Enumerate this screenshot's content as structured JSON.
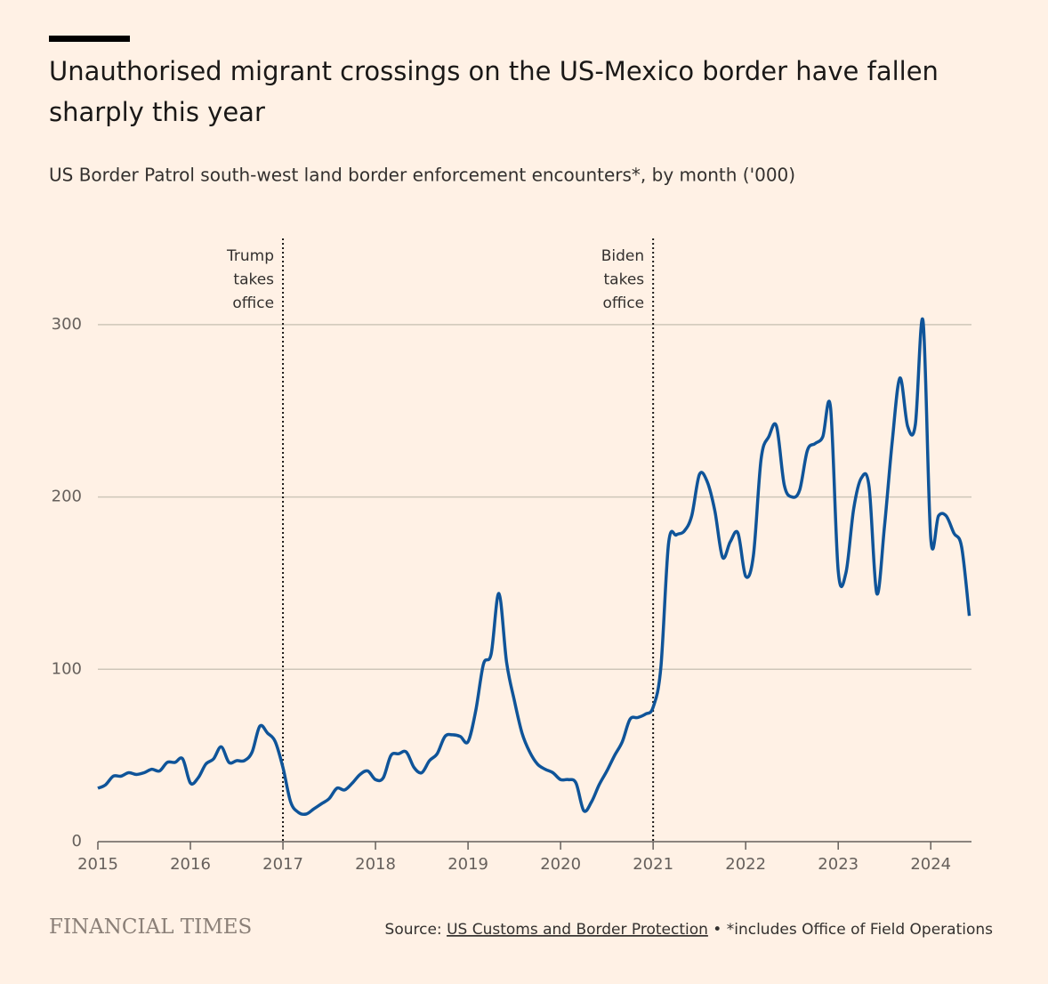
{
  "chart_data": {
    "type": "line",
    "title": "Unauthorised migrant crossings on the US-Mexico border have fallen sharply this year",
    "subtitle": "US Border Patrol south-west land border enforcement encounters*, by month ('000)",
    "x": [
      "2015-01",
      "2015-02",
      "2015-03",
      "2015-04",
      "2015-05",
      "2015-06",
      "2015-07",
      "2015-08",
      "2015-09",
      "2015-10",
      "2015-11",
      "2015-12",
      "2016-01",
      "2016-02",
      "2016-03",
      "2016-04",
      "2016-05",
      "2016-06",
      "2016-07",
      "2016-08",
      "2016-09",
      "2016-10",
      "2016-11",
      "2016-12",
      "2017-01",
      "2017-02",
      "2017-03",
      "2017-04",
      "2017-05",
      "2017-06",
      "2017-07",
      "2017-08",
      "2017-09",
      "2017-10",
      "2017-11",
      "2017-12",
      "2018-01",
      "2018-02",
      "2018-03",
      "2018-04",
      "2018-05",
      "2018-06",
      "2018-07",
      "2018-08",
      "2018-09",
      "2018-10",
      "2018-11",
      "2018-12",
      "2019-01",
      "2019-02",
      "2019-03",
      "2019-04",
      "2019-05",
      "2019-06",
      "2019-07",
      "2019-08",
      "2019-09",
      "2019-10",
      "2019-11",
      "2019-12",
      "2020-01",
      "2020-02",
      "2020-03",
      "2020-04",
      "2020-05",
      "2020-06",
      "2020-07",
      "2020-08",
      "2020-09",
      "2020-10",
      "2020-11",
      "2020-12",
      "2021-01",
      "2021-02",
      "2021-03",
      "2021-04",
      "2021-05",
      "2021-06",
      "2021-07",
      "2021-08",
      "2021-09",
      "2021-10",
      "2021-11",
      "2021-12",
      "2022-01",
      "2022-02",
      "2022-03",
      "2022-04",
      "2022-05",
      "2022-06",
      "2022-07",
      "2022-08",
      "2022-09",
      "2022-10",
      "2022-11",
      "2022-12",
      "2023-01",
      "2023-02",
      "2023-03",
      "2023-04",
      "2023-05",
      "2023-06",
      "2023-07",
      "2023-08",
      "2023-09",
      "2023-10",
      "2023-11",
      "2023-12",
      "2024-01",
      "2024-02",
      "2024-03",
      "2024-04",
      "2024-05",
      "2024-06"
    ],
    "series": [
      {
        "name": "Encounters",
        "color": "#0f5499",
        "values": [
          31,
          33,
          38,
          38,
          40,
          39,
          40,
          42,
          41,
          46,
          46,
          48,
          34,
          37,
          45,
          48,
          55,
          46,
          47,
          47,
          52,
          67,
          63,
          58,
          43,
          23,
          17,
          16,
          19,
          22,
          25,
          31,
          30,
          34,
          39,
          41,
          36,
          37,
          50,
          51,
          52,
          43,
          40,
          47,
          51,
          61,
          62,
          61,
          58,
          76,
          103,
          109,
          144,
          104,
          82,
          63,
          52,
          45,
          42,
          40,
          36,
          36,
          34,
          18,
          23,
          33,
          41,
          50,
          58,
          71,
          72,
          74,
          78,
          101,
          173,
          178,
          180,
          189,
          213,
          209,
          192,
          165,
          174,
          179,
          154,
          166,
          222,
          235,
          241,
          207,
          200,
          204,
          227,
          231,
          235,
          252,
          157,
          156,
          193,
          211,
          206,
          144,
          183,
          232,
          269,
          241,
          242,
          302,
          176,
          189,
          189,
          179,
          171,
          131
        ]
      }
    ],
    "xlim": [
      2015,
      2024.44
    ],
    "xticks": [
      2015,
      2016,
      2017,
      2018,
      2019,
      2020,
      2021,
      2022,
      2023,
      2024
    ],
    "ylim": [
      0,
      350
    ],
    "yticks": [
      0,
      100,
      200,
      300
    ],
    "grid": true,
    "annotations": [
      {
        "x": 2017,
        "text": "Trump takes office"
      },
      {
        "x": 2021,
        "text": "Biden takes office"
      }
    ],
    "brand": "FINANCIAL TIMES",
    "source_label": "Source:",
    "source_link": "US Customs and Border Protection",
    "source_note": "• *includes Office of Field Operations"
  }
}
